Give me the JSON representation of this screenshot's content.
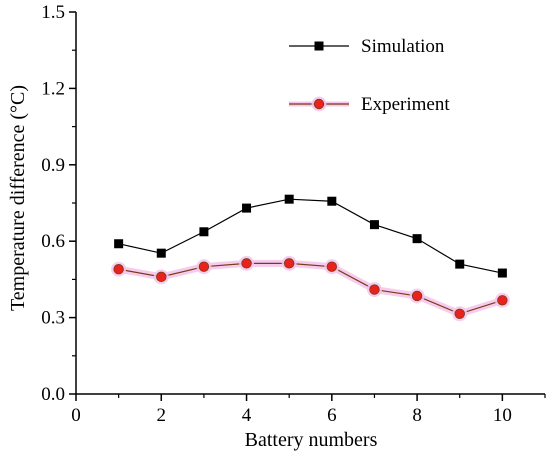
{
  "chart_data": {
    "type": "line",
    "xlabel": "Battery numbers",
    "ylabel": "Temperature difference (°C)",
    "xlim": [
      0,
      11
    ],
    "ylim": [
      0.0,
      1.5
    ],
    "x_ticks": [
      "0",
      "2",
      "4",
      "6",
      "8",
      "10"
    ],
    "y_ticks": [
      "0.0",
      "0.3",
      "0.6",
      "0.9",
      "1.2",
      "1.5"
    ],
    "grid": false,
    "legend_position": "top-right",
    "x": [
      1,
      2,
      3,
      4,
      5,
      6,
      7,
      8,
      9,
      10
    ],
    "series": [
      {
        "name": "Simulation",
        "marker": "square",
        "line_color": "#000000",
        "marker_color": "#000000",
        "values": [
          0.59,
          0.553,
          0.637,
          0.73,
          0.765,
          0.757,
          0.665,
          0.61,
          0.51,
          0.475
        ]
      },
      {
        "name": "Experiment",
        "marker": "circle",
        "line_color": "#7a3a16",
        "marker_color": "#e8221c",
        "glow_color": "#f4c6ec",
        "values": [
          0.49,
          0.46,
          0.5,
          0.513,
          0.513,
          0.5,
          0.41,
          0.385,
          0.315,
          0.368
        ]
      }
    ]
  }
}
